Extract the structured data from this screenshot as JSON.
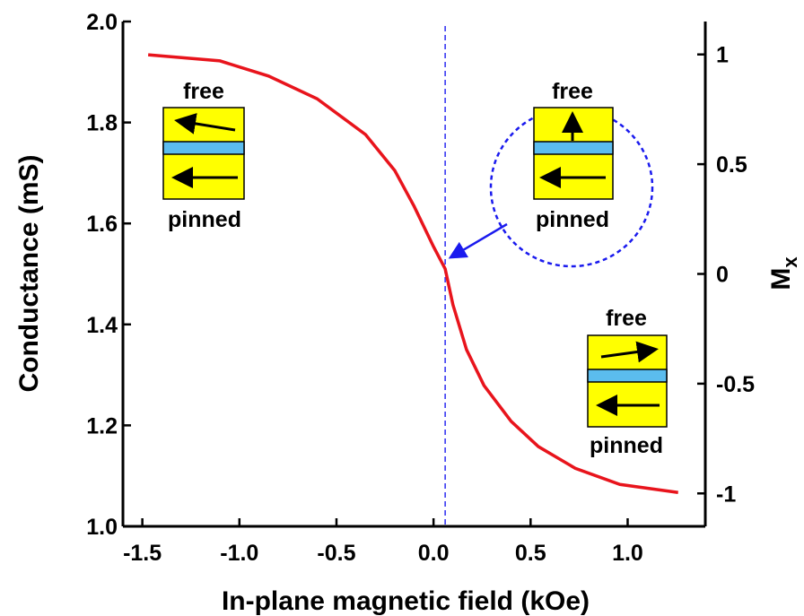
{
  "chart_data": {
    "type": "line",
    "xlabel": "In-plane magnetic field (kOe)",
    "ylabel": "Conductance (mS)",
    "y2label": "M",
    "y2label_subscript": "x",
    "xlim": [
      -1.6,
      1.4
    ],
    "xticks": [
      -1.5,
      {
        "value": -1,
        "label": "-1.0"
      },
      -0.5,
      {
        "value": 0,
        "label": "0.0"
      },
      0.5,
      {
        "value": 1,
        "label": "1.0"
      }
    ],
    "ylim": [
      1.0,
      2.0
    ],
    "yticks": [
      {
        "value": 1,
        "label": "1.0"
      },
      1.2,
      1.4,
      1.6,
      1.8,
      {
        "value": 2,
        "label": "2.0"
      }
    ],
    "y2lim": [
      -1.15,
      1.15
    ],
    "y2ticks": [
      -1,
      -0.5,
      0,
      0.5,
      1
    ],
    "series": [
      {
        "color": "#e8141c",
        "x": [
          -1.47,
          -1.1,
          -0.85,
          -0.6,
          -0.35,
          -0.2,
          -0.1,
          0.0,
          0.06,
          0.1,
          0.17,
          0.26,
          0.4,
          0.54,
          0.73,
          0.96,
          1.26
        ],
        "values": [
          1.934,
          1.922,
          1.892,
          1.847,
          1.776,
          1.705,
          1.634,
          1.554,
          1.51,
          1.439,
          1.35,
          1.279,
          1.208,
          1.158,
          1.115,
          1.083,
          1.067
        ]
      }
    ],
    "vline": {
      "x": 0.06,
      "color": "#2a2af0"
    },
    "annotations": [
      {
        "top": "free",
        "bottom": "pinned"
      },
      {
        "top": "free",
        "bottom": "pinned"
      },
      {
        "top": "free",
        "bottom": "pinned"
      }
    ]
  }
}
